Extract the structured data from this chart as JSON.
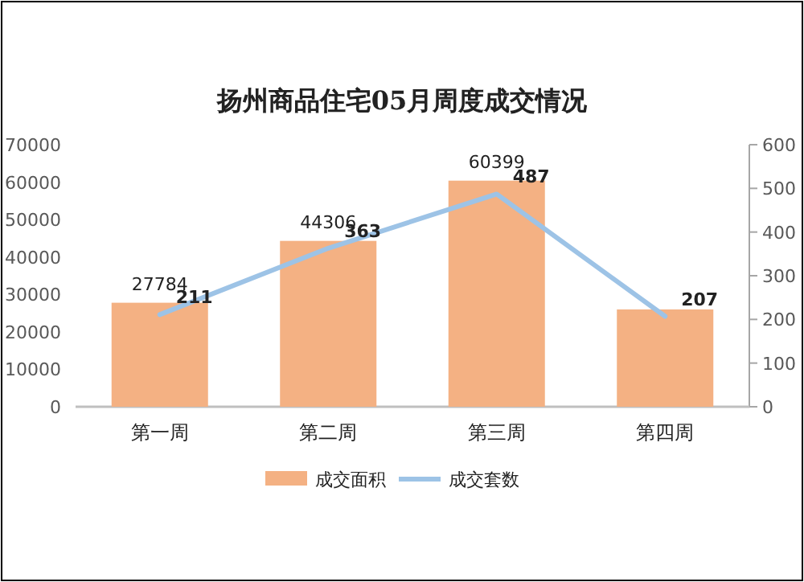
{
  "chart_data": {
    "type": "bar",
    "title": "扬州商品住宅05月周度成交情况",
    "categories": [
      "第一周",
      "第二周",
      "第三周",
      "第四周"
    ],
    "series": [
      {
        "name": "成交面积",
        "color": "#f4b183",
        "values": [
          27784,
          44306,
          60399,
          26000
        ],
        "value_labels": [
          "27784",
          "44306",
          "60399",
          null
        ]
      },
      {
        "name": "成交套数",
        "type": "line",
        "axis": "y2",
        "color": "#9dc3e6",
        "values": [
          211,
          363,
          487,
          207
        ],
        "value_labels": [
          "211",
          "363",
          "487",
          "207"
        ]
      }
    ],
    "ylim": [
      0,
      70000
    ],
    "yticks": [
      0,
      10000,
      20000,
      30000,
      40000,
      50000,
      60000,
      70000
    ],
    "y2lim": [
      0,
      600
    ],
    "y2ticks": [
      0,
      100,
      200,
      300,
      400,
      500,
      600
    ],
    "grid": false,
    "legend": "bottom",
    "marker": "none",
    "line_style": "solid"
  }
}
